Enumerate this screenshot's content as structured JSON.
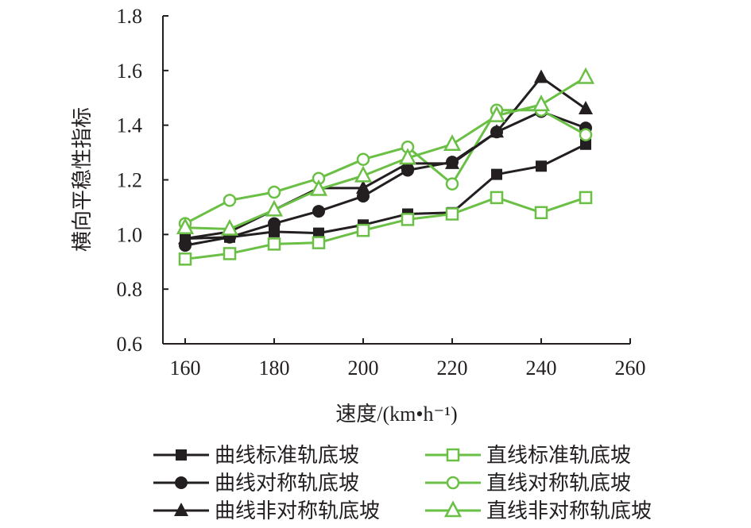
{
  "chart_data": {
    "type": "line",
    "title": "",
    "xlabel": "速度/(km•h⁻¹)",
    "ylabel": "横向平稳性指标",
    "xlim": [
      155,
      260
    ],
    "ylim": [
      0.6,
      1.8
    ],
    "xticks": [
      160,
      180,
      200,
      220,
      240,
      260
    ],
    "yticks": [
      "0.6",
      "0.8",
      "1.0",
      "1.2",
      "1.4",
      "1.6",
      "1.8"
    ],
    "grid": false,
    "legend_position": "bottom",
    "x": [
      160,
      170,
      180,
      190,
      200,
      210,
      220,
      230,
      240,
      250
    ],
    "series": [
      {
        "name": "曲线标准轨底坡",
        "color": "#231f20",
        "marker": "square-filled",
        "values": [
          0.985,
          0.99,
          1.01,
          1.005,
          1.035,
          1.075,
          1.08,
          1.22,
          1.25,
          1.33
        ]
      },
      {
        "name": "直线标准轨底坡",
        "color": "#6abf45",
        "marker": "square-open",
        "values": [
          0.91,
          0.93,
          0.965,
          0.97,
          1.015,
          1.055,
          1.075,
          1.135,
          1.08,
          1.135
        ]
      },
      {
        "name": "曲线对称轨底坡",
        "color": "#231f20",
        "marker": "circle-filled",
        "values": [
          0.96,
          0.99,
          1.04,
          1.085,
          1.14,
          1.235,
          1.265,
          1.375,
          1.45,
          1.39
        ]
      },
      {
        "name": "直线对称轨底坡",
        "color": "#6abf45",
        "marker": "circle-open",
        "values": [
          1.04,
          1.125,
          1.155,
          1.205,
          1.275,
          1.32,
          1.185,
          1.455,
          1.455,
          1.365
        ]
      },
      {
        "name": "曲线非对称轨底坡",
        "color": "#231f20",
        "marker": "triangle-filled",
        "values": [
          0.985,
          1.01,
          1.09,
          1.17,
          1.17,
          1.26,
          1.26,
          1.375,
          1.575,
          1.46
        ]
      },
      {
        "name": "直线非对称轨底坡",
        "color": "#6abf45",
        "marker": "triangle-open",
        "values": [
          1.025,
          1.02,
          1.09,
          1.165,
          1.215,
          1.28,
          1.33,
          1.435,
          1.475,
          1.575
        ]
      }
    ]
  }
}
